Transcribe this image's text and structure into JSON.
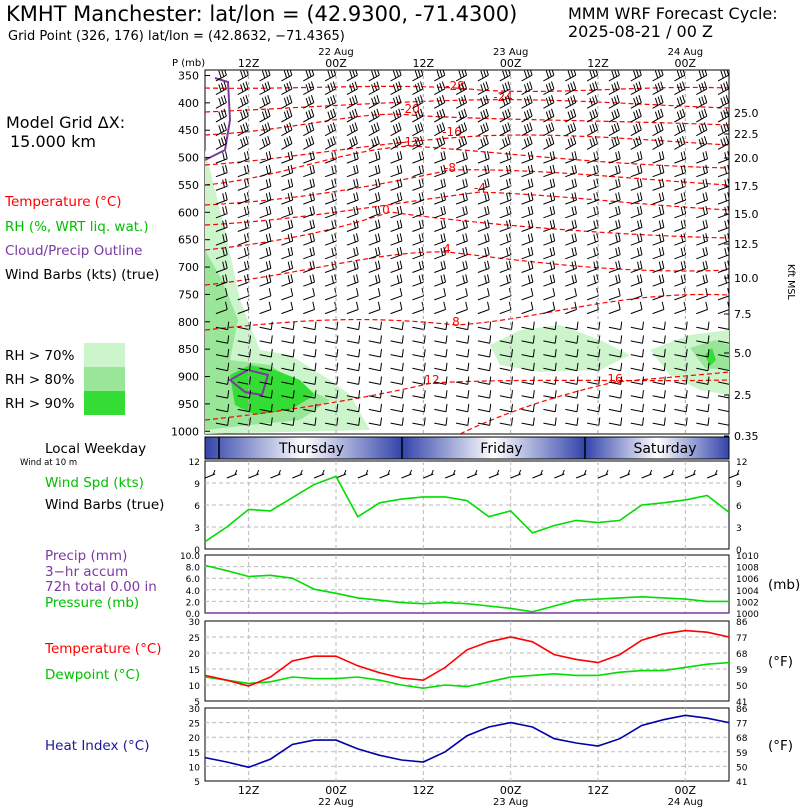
{
  "header": {
    "title": "KMHT Manchester:  lat/lon = (42.9300, -71.4300)",
    "subtitle": "Grid Point (326, 176) lat/lon = (42.8632, −71.4365)",
    "cycle_line1": "MMM WRF Forecast Cycle:",
    "cycle_line2": "2025-08-21 / 00  Z"
  },
  "left_labels": {
    "grid_line1": "Model Grid ΔX:",
    "grid_line2": "15.000 km",
    "temperature": "Temperature (°C)",
    "rh": "RH (%, WRT liq. wat.)",
    "cloud": "Cloud/Precip Outline",
    "wind": "Wind Barbs (kts) (true)",
    "rh70": "RH > 70%",
    "rh80": "RH > 80%",
    "rh90": "RH > 90%",
    "local_weekday": "Local Weekday",
    "wind10m": "Wind at 10 m",
    "wind_spd": "Wind Spd (kts)",
    "wind_barbs_true": "Wind Barbs (true)",
    "precip1": "Precip (mm)",
    "precip2": "3−hr accum",
    "precip3": "72h total 0.00 in",
    "pressure": "Pressure (mb)",
    "temp2": "Temperature (°C)",
    "dewpoint": "Dewpoint (°C)",
    "heat_index": "Heat Index (°C)"
  },
  "right_labels": {
    "kft": "Kft MSL",
    "mb": "(mb)",
    "degf1": "(°F)",
    "degf2": "(°F)"
  },
  "time_axis": {
    "top_ticks": [
      "12Z",
      "22 Aug\n00Z",
      "12Z",
      "23 Aug\n00Z",
      "12Z",
      "24 Aug\n00Z"
    ],
    "bottom_ticks": [
      "12Z",
      "00Z\n22 Aug",
      "12Z",
      "00Z\n23 Aug",
      "12Z",
      "00Z\n24 Aug"
    ],
    "weekdays": [
      "Thursday",
      "Friday",
      "Saturday"
    ]
  },
  "colors": {
    "temperature": "#ff0000",
    "dewpoint": "#00dd00",
    "heat_index": "#0000aa",
    "rh70": "#ccf5cc",
    "rh80": "#99e699",
    "rh90": "#33dd33",
    "cloud": "#7a3aa0",
    "weekday_band": "#3344aa"
  },
  "chart_data": [
    {
      "type": "heatmap",
      "name": "cross-section",
      "ylabel": "P (mb)",
      "yticks": [
        350,
        400,
        450,
        500,
        550,
        600,
        650,
        700,
        750,
        800,
        850,
        900,
        950,
        1000
      ],
      "right_ticks_kft": [
        "25.0",
        "22.5",
        "20.0",
        "17.5",
        "15.0",
        "12.5",
        "10.0",
        "7.5",
        "5.0",
        "2.5",
        "0.35"
      ],
      "temperature_contour_labels": [
        "-28",
        "-24",
        "-20",
        "-16",
        "-12",
        "-8",
        "-4",
        "0",
        "4",
        "8",
        "12",
        "16"
      ]
    },
    {
      "type": "line",
      "name": "wind_speed",
      "ylabel": "Wind Spd (kts)",
      "ylim": [
        0,
        12
      ],
      "yticks": [
        0,
        3,
        6,
        9,
        12
      ],
      "x": [
        0,
        3,
        6,
        9,
        12,
        15,
        18,
        21,
        24,
        27,
        30,
        33,
        36,
        39,
        42,
        45,
        48,
        51,
        54,
        57,
        60,
        63,
        66,
        69,
        72
      ],
      "series": [
        {
          "values": [
            1.0,
            3.0,
            5.4,
            5.2,
            7.0,
            8.8,
            9.9,
            4.4,
            6.3,
            6.8,
            7.1,
            7.1,
            6.6,
            4.4,
            5.2,
            2.2,
            3.2,
            3.9,
            3.6,
            3.9,
            6.0,
            6.3,
            6.7,
            7.3,
            5.0
          ]
        }
      ]
    },
    {
      "type": "line",
      "name": "precip_pressure",
      "ylim": [
        0,
        10
      ],
      "yticks": [
        "0.0",
        "2.0",
        "4.0",
        "6.0",
        "8.0",
        "10.0"
      ],
      "right_ticks": [
        1000,
        1002,
        1004,
        1006,
        1008,
        1010
      ],
      "series": [
        {
          "name": "Precip (mm)",
          "values": [
            0,
            0,
            0,
            0,
            0,
            0,
            0,
            0,
            0,
            0,
            0,
            0,
            0,
            0,
            0,
            0,
            0,
            0,
            0,
            0,
            0,
            0,
            0,
            0,
            0
          ]
        },
        {
          "name": "Pressure (mb)",
          "values": [
            1008.2,
            1007.3,
            1006.3,
            1006.5,
            1006.0,
            1004.1,
            1003.4,
            1002.6,
            1002.2,
            1001.8,
            1001.6,
            1001.8,
            1001.6,
            1001.2,
            1000.8,
            1000.2,
            1001.2,
            1002.2,
            1002.4,
            1002.6,
            1002.8,
            1002.6,
            1002.4,
            1002.0,
            1002.0
          ]
        }
      ]
    },
    {
      "type": "line",
      "name": "temperature_dewpoint",
      "ylim": [
        5,
        30
      ],
      "yticks": [
        5,
        10,
        15,
        20,
        25,
        30
      ],
      "right_ticks": [
        41,
        50,
        59,
        68,
        77,
        86
      ],
      "series": [
        {
          "name": "Temperature (°C)",
          "values": [
            13.0,
            11.5,
            9.7,
            12.5,
            17.5,
            19.0,
            19.0,
            16.0,
            13.8,
            12.2,
            11.5,
            15.5,
            21.0,
            23.5,
            25.0,
            23.5,
            19.5,
            18.0,
            17.0,
            19.5,
            24.0,
            26.0,
            27.0,
            26.5,
            25.0
          ]
        },
        {
          "name": "Dewpoint (°C)",
          "values": [
            12.5,
            11.5,
            10.5,
            11.0,
            12.5,
            12.0,
            12.0,
            12.5,
            11.5,
            10.0,
            9.0,
            10.0,
            9.5,
            11.0,
            12.5,
            13.0,
            13.5,
            13.0,
            13.0,
            14.0,
            14.5,
            14.5,
            15.5,
            16.5,
            17.0
          ]
        }
      ]
    },
    {
      "type": "line",
      "name": "heat_index",
      "ylim": [
        5,
        30
      ],
      "yticks": [
        5,
        10,
        15,
        20,
        25,
        30
      ],
      "right_ticks": [
        41,
        50,
        59,
        68,
        77,
        86
      ],
      "series": [
        {
          "name": "Heat Index (°C)",
          "values": [
            13.0,
            11.5,
            9.7,
            12.5,
            17.5,
            19.0,
            19.0,
            16.0,
            13.8,
            12.2,
            11.5,
            15.0,
            20.5,
            23.5,
            25.0,
            23.5,
            19.5,
            18.0,
            17.0,
            19.5,
            24.0,
            26.0,
            27.5,
            26.5,
            25.0
          ]
        }
      ]
    }
  ]
}
